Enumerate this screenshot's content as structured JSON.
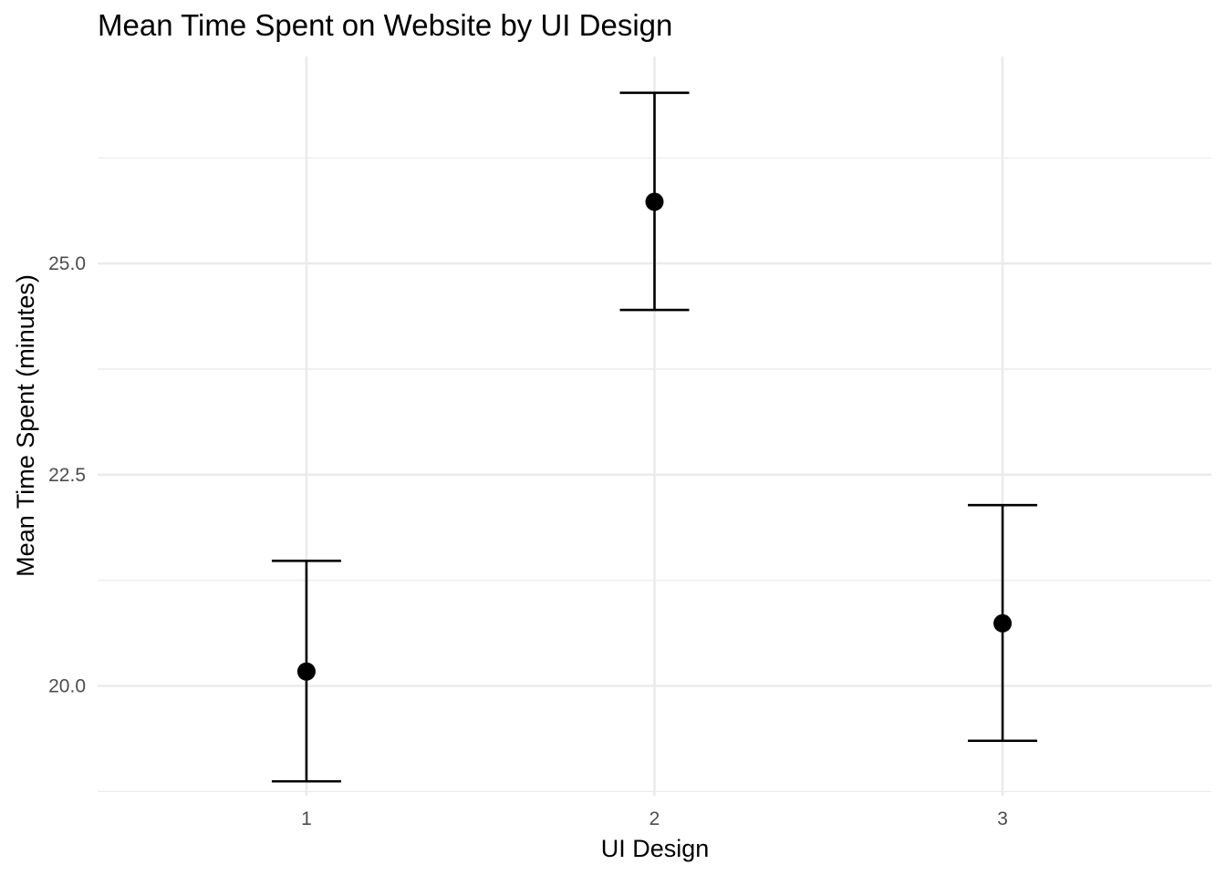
{
  "chart_data": {
    "type": "scatter",
    "title": "Mean Time Spent on Website by UI Design",
    "xlabel": "UI Design",
    "ylabel": "Mean Time Spent (minutes)",
    "categories": [
      "1",
      "2",
      "3"
    ],
    "series": [
      {
        "means": [
          20.17,
          25.73,
          20.74
        ],
        "lower": [
          18.87,
          24.45,
          19.35
        ],
        "upper": [
          21.48,
          27.02,
          22.14
        ]
      }
    ],
    "y_ticks": [
      20.0,
      22.5,
      25.0
    ],
    "y_tick_labels": [
      "20.0",
      "22.5",
      "25.0"
    ],
    "ylim": [
      18.7,
      27.45
    ],
    "grid": true,
    "legend": "none",
    "colors": {
      "marks": "#000000",
      "grid": "#ebebeb",
      "tick_text": "#4d4d4d",
      "background": "#ffffff"
    }
  }
}
